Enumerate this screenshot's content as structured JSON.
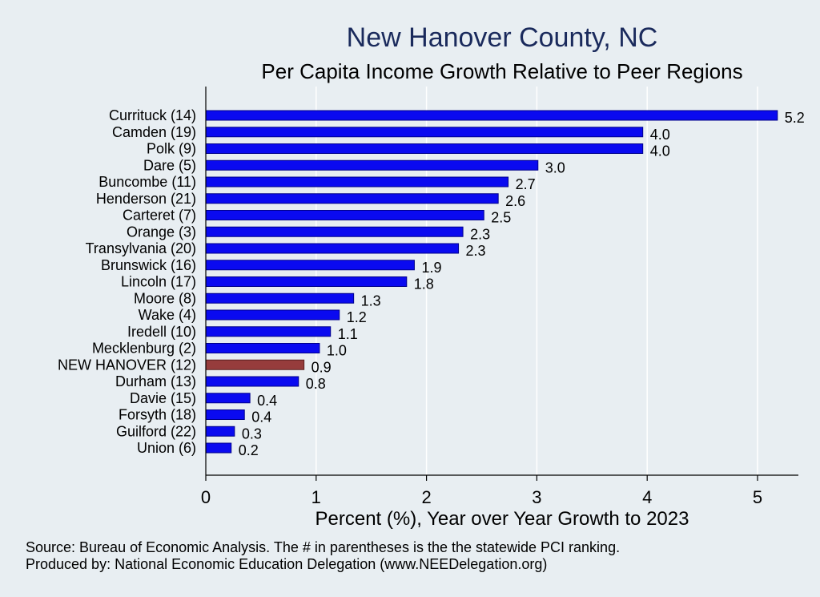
{
  "chart_data": {
    "type": "bar",
    "orientation": "horizontal",
    "title": "New Hanover County, NC",
    "subtitle": "Per Capita Income Growth Relative to Peer Regions",
    "xlabel": "Percent (%), Year over Year Growth to 2023",
    "ylabel": "",
    "xlim": [
      0,
      5.4
    ],
    "xticks": [
      "0",
      "1",
      "2",
      "3",
      "4",
      "5"
    ],
    "grid": true,
    "categories": [
      "Currituck (14)",
      "Camden (19)",
      "Polk  (9)",
      "Dare  (5)",
      "Buncombe (11)",
      "Henderson (21)",
      "Carteret  (7)",
      "Orange  (3)",
      "Transylvania (20)",
      "Brunswick (16)",
      "Lincoln (17)",
      "Moore  (8)",
      "Wake  (4)",
      "Iredell (10)",
      "Mecklenburg  (2)",
      "NEW HANOVER (12)",
      "Durham (13)",
      "Davie (15)",
      "Forsyth (18)",
      "Guilford (22)",
      "Union  (6)"
    ],
    "values": [
      5.18,
      3.96,
      3.96,
      3.01,
      2.74,
      2.65,
      2.52,
      2.33,
      2.29,
      1.89,
      1.82,
      1.34,
      1.21,
      1.13,
      1.03,
      0.89,
      0.84,
      0.4,
      0.35,
      0.26,
      0.23
    ],
    "value_labels": [
      "5.2",
      "4.0",
      "4.0",
      "3.0",
      "2.7",
      "2.6",
      "2.5",
      "2.3",
      "2.3",
      "1.9",
      "1.8",
      "1.3",
      "1.2",
      "1.1",
      "1.0",
      "0.9",
      "0.8",
      "0.4",
      "0.4",
      "0.3",
      "0.2"
    ],
    "highlight_index": 15,
    "colors": {
      "bar": "#0a0af0",
      "highlight": "#963c3c",
      "bar_edge": "#00008b",
      "grid": "#ffffff",
      "plot_bg": "#e8eef2"
    }
  },
  "footer": {
    "source": "Source: Bureau of Economic Analysis. The # in parentheses is the the statewide PCI ranking.",
    "producer": "Produced by: National Economic Education Delegation (www.NEEDelegation.org)"
  }
}
